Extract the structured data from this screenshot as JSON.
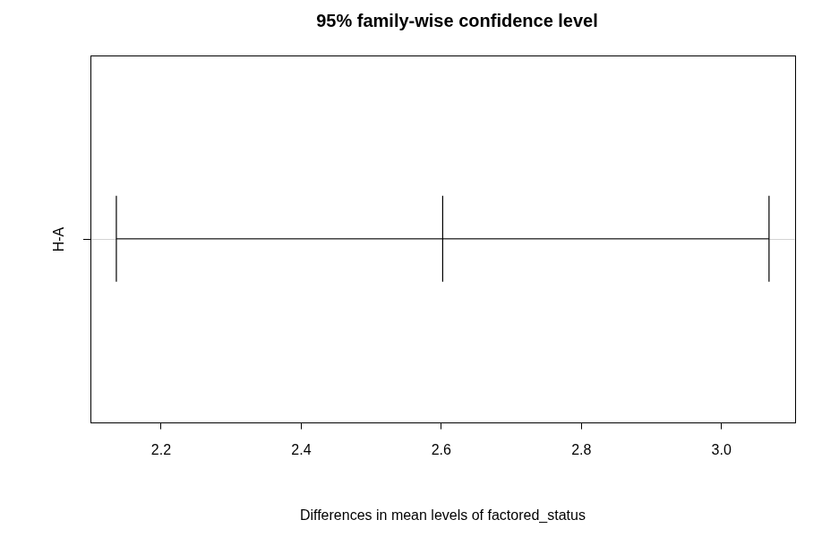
{
  "chart_data": {
    "type": "interval",
    "title": "95% family-wise confidence level",
    "x_label": "Differences in mean levels of factored_status",
    "categories": [
      "H-A"
    ],
    "values": [
      2.602
    ],
    "lower": [
      2.136
    ],
    "upper": [
      3.068
    ],
    "orientation": "horizontal",
    "grid": false,
    "xlim": [
      2.099,
      3.105
    ],
    "xticks": [
      2.2,
      2.4,
      2.6,
      2.8,
      {
        "value": 3.0,
        "label": "3.0"
      }
    ]
  }
}
